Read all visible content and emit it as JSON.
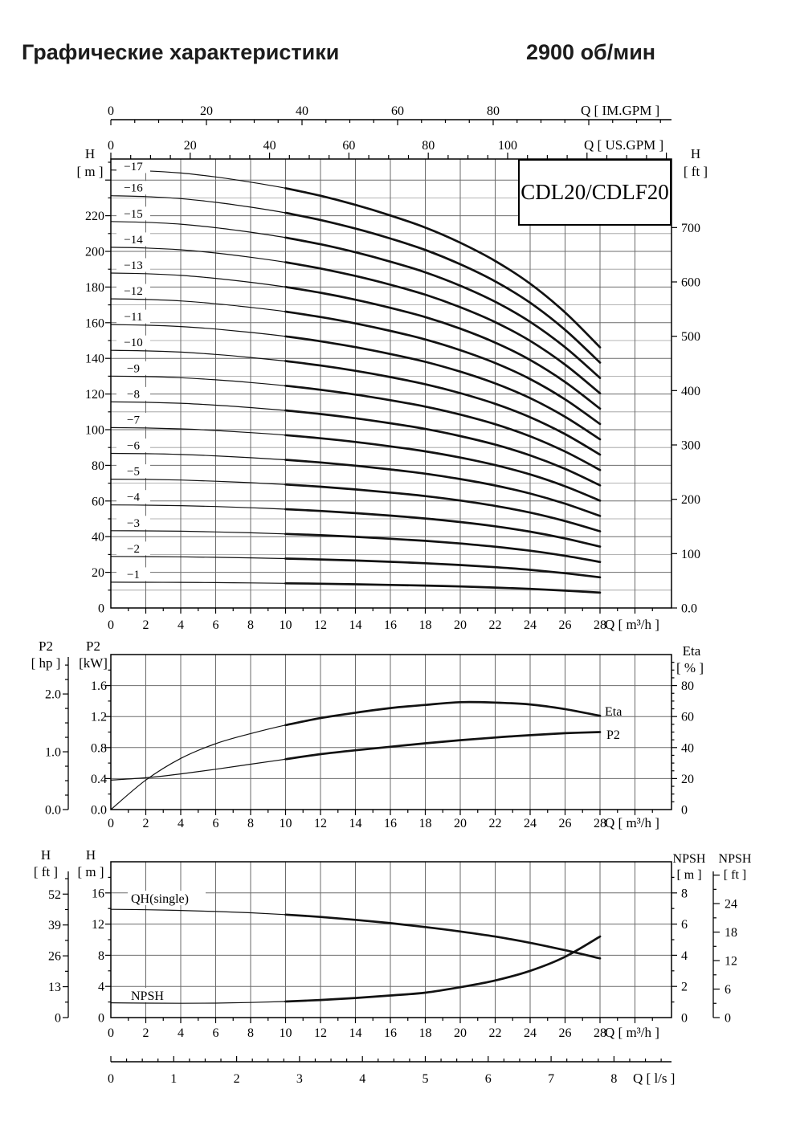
{
  "page": {
    "title": "Графические характеристики",
    "speed": "2900 об/мин"
  },
  "model_box": {
    "label": "CDL20/CDLF20"
  },
  "flow_axes": {
    "im_gpm": {
      "title": "Q [ IM.GPM ]",
      "tick_labels": [
        0,
        20,
        40,
        60,
        80
      ]
    },
    "us_gpm": {
      "title": "Q [ US.GPM ]",
      "tick_labels": [
        0,
        20,
        40,
        60,
        80,
        100
      ]
    },
    "ls": {
      "title": "Q [ l/s ]",
      "tick_labels": [
        0,
        1,
        2,
        3,
        4,
        5,
        6,
        7,
        8
      ]
    }
  },
  "chart_data": [
    {
      "id": "qh-multistage",
      "type": "line",
      "title": "CDL20/CDLF20",
      "xlabel": "Q [ m³/h ]",
      "ylabel_left": [
        "H",
        "[ m ]"
      ],
      "ylabel_right": [
        "H",
        "[ ft ]"
      ],
      "x": [
        0,
        2,
        4,
        6,
        8,
        10,
        12,
        14,
        16,
        18,
        20,
        22,
        24,
        26,
        28
      ],
      "x_tick_labels": [
        0,
        2,
        4,
        6,
        8,
        10,
        12,
        14,
        16,
        18,
        20,
        22,
        24,
        26,
        28
      ],
      "xlim": [
        0,
        32
      ],
      "ylim_m": [
        0,
        252
      ],
      "y_tick_labels_m": [
        0,
        20,
        40,
        60,
        80,
        100,
        120,
        140,
        160,
        180,
        200,
        220
      ],
      "y_tick_labels_ft": [
        "700",
        "600",
        "500",
        "400",
        "300",
        "200",
        "100",
        "0.0"
      ],
      "stages": [
        1,
        2,
        3,
        4,
        5,
        6,
        7,
        8,
        9,
        10,
        11,
        12,
        13,
        14,
        15,
        16,
        17
      ],
      "stage_label_prefix": "−",
      "per_stage_head_m": [
        14.45,
        14.42,
        14.35,
        14.22,
        14.05,
        13.85,
        13.6,
        13.3,
        12.95,
        12.55,
        12.05,
        11.45,
        10.7,
        9.75,
        8.6
      ],
      "series_rule": "head_m(stage, Q) = stage × per_stage_head_m(Q)"
    },
    {
      "id": "power-efficiency",
      "type": "line",
      "xlabel": "Q [ m³/h ]",
      "ylabel_left_outer": [
        "P2",
        "[ hp ]"
      ],
      "ylabel_left": [
        "P2",
        "[kW]"
      ],
      "ylabel_right": [
        "Eta",
        "[ % ]"
      ],
      "x": [
        0,
        2,
        4,
        6,
        8,
        10,
        12,
        14,
        16,
        18,
        20,
        22,
        24,
        26,
        28
      ],
      "x_tick_labels": [
        0,
        2,
        4,
        6,
        8,
        10,
        12,
        14,
        16,
        18,
        20,
        22,
        24,
        26,
        28
      ],
      "y_tick_labels_kw": [
        "1.6",
        "1.2",
        "0.8",
        "0.4",
        "0.0"
      ],
      "y_tick_labels_hp": [
        "2.0",
        "1.0",
        "0.0"
      ],
      "y_tick_labels_pct": [
        80,
        60,
        40,
        20,
        0
      ],
      "series": [
        {
          "name": "P2",
          "unit": "kW",
          "values": [
            0.38,
            0.41,
            0.46,
            0.52,
            0.585,
            0.65,
            0.715,
            0.765,
            0.81,
            0.855,
            0.895,
            0.93,
            0.96,
            0.985,
            1.0
          ]
        },
        {
          "name": "Eta",
          "unit": "%",
          "values": [
            0,
            19,
            33,
            42.5,
            49,
            54.5,
            59,
            62.5,
            65.5,
            67.5,
            69.3,
            69,
            67.8,
            64.8,
            60.5
          ]
        }
      ]
    },
    {
      "id": "single-stage-npsh",
      "type": "line",
      "xlabel": "Q [ m³/h ]",
      "ylabel_left_outer": [
        "H",
        "[ ft ]"
      ],
      "ylabel_left": [
        "H",
        "[ m ]"
      ],
      "ylabel_right": [
        "NPSH",
        "[ m ]"
      ],
      "ylabel_right_outer": [
        "NPSH",
        "[ ft ]"
      ],
      "x": [
        0,
        2,
        4,
        6,
        8,
        10,
        12,
        14,
        16,
        18,
        20,
        22,
        24,
        26,
        28
      ],
      "x_tick_labels": [
        0,
        2,
        4,
        6,
        8,
        10,
        12,
        14,
        16,
        18,
        20,
        22,
        24,
        26,
        28
      ],
      "y_tick_labels_m": [
        16,
        12,
        8,
        4,
        0
      ],
      "y_tick_labels_ft": [
        52,
        39,
        26,
        13,
        0
      ],
      "y_tick_labels_npsh_m": [
        8,
        6,
        4,
        2,
        0
      ],
      "y_tick_labels_npsh_ft": [
        24,
        18,
        12,
        6,
        0
      ],
      "series": [
        {
          "name": "QH(single)",
          "unit": "m",
          "values": [
            13.9,
            13.85,
            13.75,
            13.62,
            13.45,
            13.22,
            12.92,
            12.55,
            12.12,
            11.62,
            11.05,
            10.4,
            9.6,
            8.65,
            7.6
          ]
        },
        {
          "name": "NPSH",
          "unit": "m",
          "values": [
            0.95,
            0.93,
            0.92,
            0.93,
            0.97,
            1.03,
            1.13,
            1.26,
            1.42,
            1.6,
            1.95,
            2.38,
            3.0,
            3.9,
            5.2
          ]
        }
      ]
    }
  ]
}
